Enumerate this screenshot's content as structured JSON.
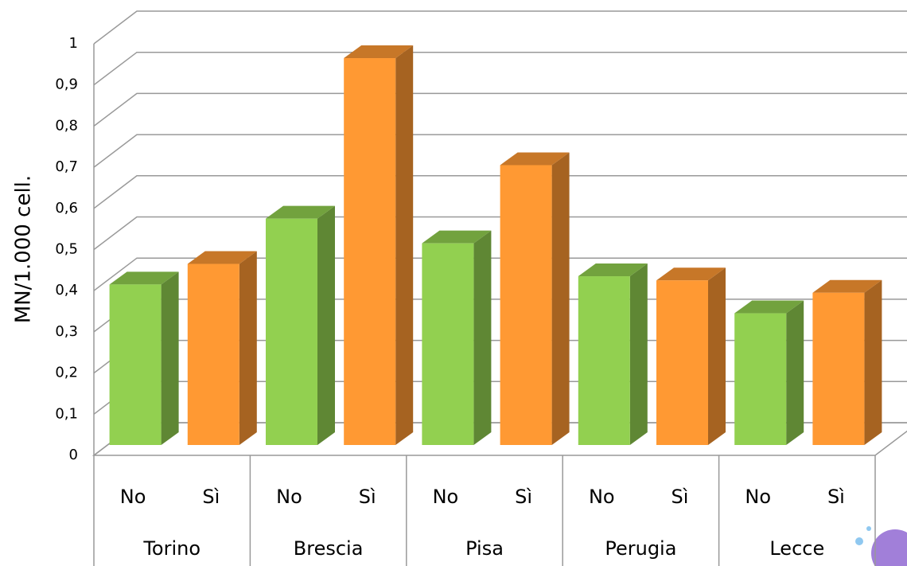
{
  "chart_data": {
    "type": "bar3d",
    "y_label": "MN/1.000 cell.",
    "categories": [
      "Torino",
      "Brescia",
      "Pisa",
      "Perugia",
      "Lecce"
    ],
    "series": [
      {
        "name": "No",
        "color": "#92d050",
        "values": [
          0.39,
          0.55,
          0.49,
          0.41,
          0.32
        ]
      },
      {
        "name": "Sì",
        "color": "#ff9933",
        "values": [
          0.44,
          0.94,
          0.68,
          0.4,
          0.37
        ]
      }
    ],
    "ylim": [
      0,
      1
    ],
    "yticks": [
      0,
      {
        "value": 0.1,
        "label": "0,1"
      },
      {
        "value": 0.2,
        "label": "0,2"
      },
      {
        "value": 0.3,
        "label": "0,3"
      },
      {
        "value": 0.4,
        "label": "0,4"
      },
      {
        "value": 0.5,
        "label": "0,5"
      },
      {
        "value": 0.6,
        "label": "0,6"
      },
      {
        "value": 0.7,
        "label": "0,7"
      },
      {
        "value": 0.8,
        "label": "0,8"
      },
      {
        "value": 0.9,
        "label": "0,9"
      },
      1
    ],
    "grid": true
  }
}
